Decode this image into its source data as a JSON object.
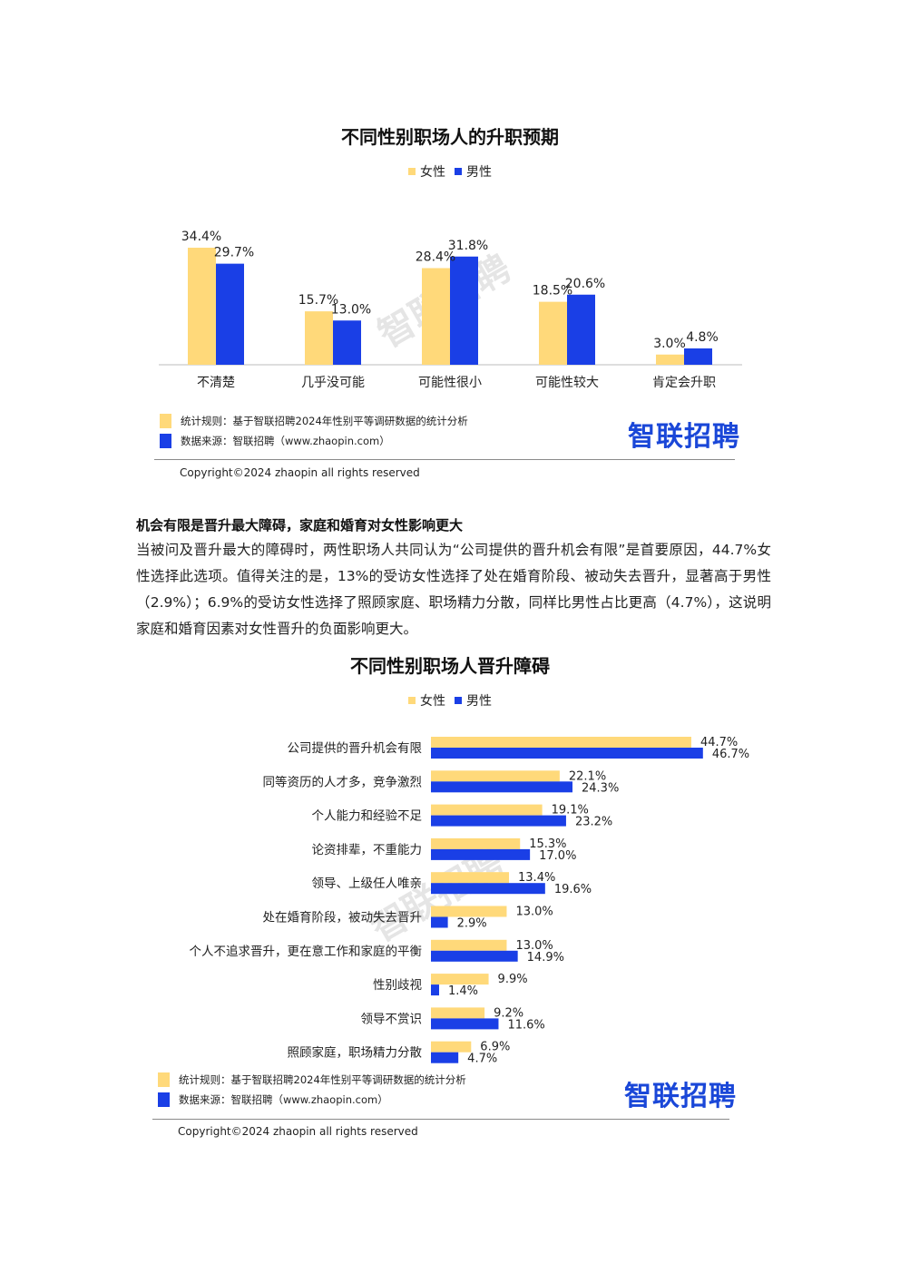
{
  "colors": {
    "female": "#FFD97A",
    "male": "#1A3FE6",
    "brand": "#1A47D8"
  },
  "chart_data": [
    {
      "type": "bar",
      "title": "不同性别职场人的升职预期",
      "categories": [
        "不清楚",
        "几乎没可能",
        "可能性很小",
        "可能性较大",
        "肯定会升职"
      ],
      "series": [
        {
          "name": "女性",
          "values": [
            34.4,
            15.7,
            28.4,
            18.5,
            3.0
          ]
        },
        {
          "name": "男性",
          "values": [
            29.7,
            13.0,
            31.8,
            20.6,
            4.8
          ]
        }
      ],
      "value_suffix": "%",
      "legend": "top-center",
      "ylim": [
        0,
        40
      ]
    },
    {
      "type": "bar",
      "orientation": "horizontal",
      "title": "不同性别职场人晋升障碍",
      "categories": [
        "公司提供的晋升机会有限",
        "同等资历的人才多，竞争激烈",
        "个人能力和经验不足",
        "论资排辈，不重能力",
        "领导、上级任人唯亲",
        "处在婚育阶段，被动失去晋升",
        "个人不追求晋升，更在意工作和家庭的平衡",
        "性别歧视",
        "领导不赏识",
        "照顾家庭，职场精力分散"
      ],
      "series": [
        {
          "name": "女性",
          "values": [
            44.7,
            22.1,
            19.1,
            15.3,
            13.4,
            13.0,
            13.0,
            9.9,
            9.2,
            6.9
          ]
        },
        {
          "name": "男性",
          "values": [
            46.7,
            24.3,
            23.2,
            17.0,
            19.6,
            2.9,
            14.9,
            1.4,
            11.6,
            4.7
          ]
        }
      ],
      "value_suffix": "%",
      "legend": "top-center",
      "xlim": [
        0,
        50
      ]
    }
  ],
  "legend_labels": {
    "female": "女性",
    "male": "男性"
  },
  "footer": {
    "rule_text": "统计规则：基于智联招聘2024年性别平等调研数据的统计分析",
    "source_text": "数据来源：智联招聘（www.zhaopin.com）",
    "brand": "智联招聘",
    "copyright": "Copyright©2024 zhaopin all rights reserved"
  },
  "watermark": "智联招聘",
  "section": {
    "heading": "机会有限是晋升最大障碍，家庭和婚育对女性影响更大",
    "body": "当被问及晋升最大的障碍时，两性职场人共同认为“公司提供的晋升机会有限”是首要原因，44.7%女性选择此选项。值得关注的是，13%的受访女性选择了处在婚育阶段、被动失去晋升，显著高于男性（2.9%）；6.9%的受访女性选择了照顾家庭、职场精力分散，同样比男性占比更高（4.7%），这说明家庭和婚育因素对女性晋升的负面影响更大。"
  }
}
